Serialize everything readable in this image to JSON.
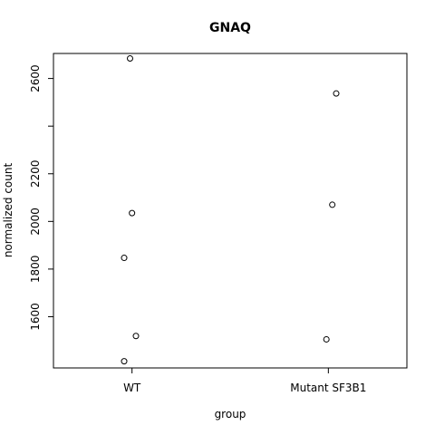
{
  "chart_data": {
    "type": "scatter",
    "title": "GNAQ",
    "xlabel": "group",
    "ylabel": "normalized count",
    "categories": [
      "WT",
      "Mutant SF3B1"
    ],
    "y_ticks": [
      1600,
      1800,
      2000,
      2200,
      2600
    ],
    "y_ticks_unlabeled": [
      2400
    ],
    "ylim": [
      1385,
      2705
    ],
    "points": [
      {
        "group": "WT",
        "jitter": -0.01,
        "value": 2684
      },
      {
        "group": "WT",
        "jitter": 0.0,
        "value": 2035
      },
      {
        "group": "WT",
        "jitter": -0.04,
        "value": 1847
      },
      {
        "group": "WT",
        "jitter": 0.02,
        "value": 1519
      },
      {
        "group": "WT",
        "jitter": -0.04,
        "value": 1413
      },
      {
        "group": "Mutant SF3B1",
        "jitter": 0.04,
        "value": 2537
      },
      {
        "group": "Mutant SF3B1",
        "jitter": 0.02,
        "value": 2070
      },
      {
        "group": "Mutant SF3B1",
        "jitter": -0.01,
        "value": 1505
      }
    ],
    "grid": false,
    "legend": "none"
  }
}
